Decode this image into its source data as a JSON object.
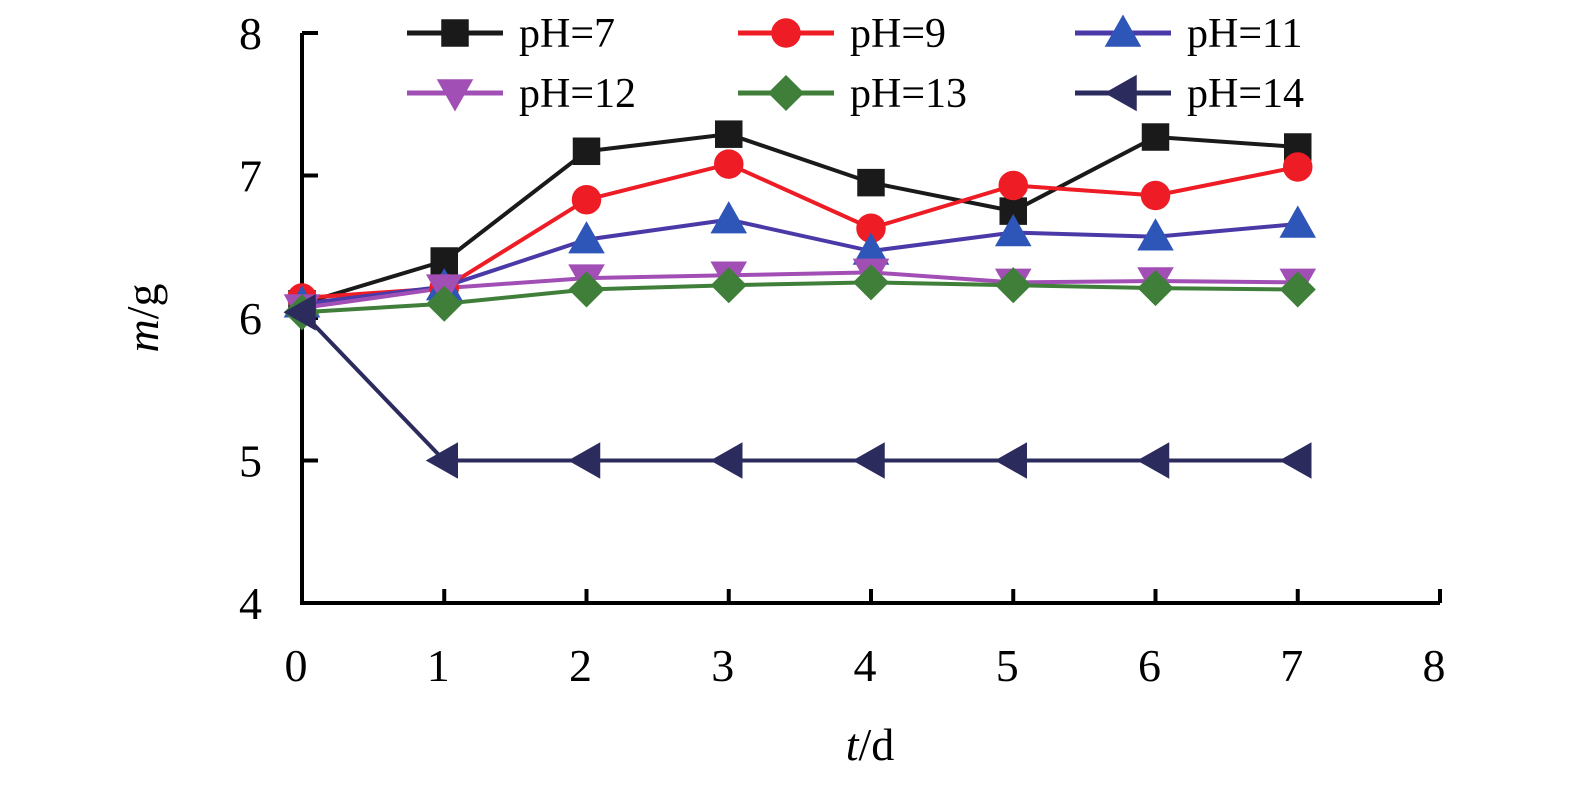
{
  "chart_data": {
    "type": "line",
    "title": "",
    "xlabel": {
      "var": "t",
      "unit": "/d"
    },
    "ylabel": {
      "var": "m",
      "unit": "/g"
    },
    "xlim": [
      0,
      8
    ],
    "ylim": [
      4,
      8
    ],
    "xticks": [
      "0",
      "1",
      "2",
      "3",
      "4",
      "5",
      "6",
      "7",
      "8"
    ],
    "yticks": [
      "4",
      "5",
      "6",
      "7",
      "8"
    ],
    "grid": false,
    "legend_position": "top",
    "x": [
      0,
      1,
      2,
      3,
      4,
      5,
      6,
      7
    ],
    "series": [
      {
        "name": "pH=7",
        "marker": "square",
        "color": "#1a1a1a",
        "line_color": "#1a1a1a",
        "values": [
          6.1,
          6.4,
          7.17,
          7.29,
          6.95,
          6.75,
          7.27,
          7.2
        ]
      },
      {
        "name": "pH=9",
        "marker": "circle",
        "color": "#ee1c25",
        "line_color": "#ee1c25",
        "values": [
          6.14,
          6.21,
          6.83,
          7.08,
          6.63,
          6.93,
          6.86,
          7.06
        ]
      },
      {
        "name": "pH=11",
        "marker": "triangle-up",
        "color": "#2e56b8",
        "line_color": "#4a3aa8",
        "values": [
          6.1,
          6.22,
          6.55,
          6.69,
          6.47,
          6.6,
          6.57,
          6.66
        ]
      },
      {
        "name": "pH=12",
        "marker": "triangle-down",
        "color": "#a24fb5",
        "line_color": "#a24fb5",
        "values": [
          6.07,
          6.21,
          6.28,
          6.3,
          6.32,
          6.25,
          6.26,
          6.25
        ]
      },
      {
        "name": "pH=13",
        "marker": "diamond",
        "color": "#3f7f3a",
        "line_color": "#3f7f3a",
        "values": [
          6.04,
          6.1,
          6.2,
          6.23,
          6.25,
          6.23,
          6.21,
          6.2
        ]
      },
      {
        "name": "pH=14",
        "marker": "triangle-left",
        "color": "#2c2b5e",
        "line_color": "#2c2b5e",
        "values": [
          6.04,
          5.0,
          5.0,
          5.0,
          5.0,
          5.0,
          5.0,
          5.0
        ]
      }
    ]
  }
}
